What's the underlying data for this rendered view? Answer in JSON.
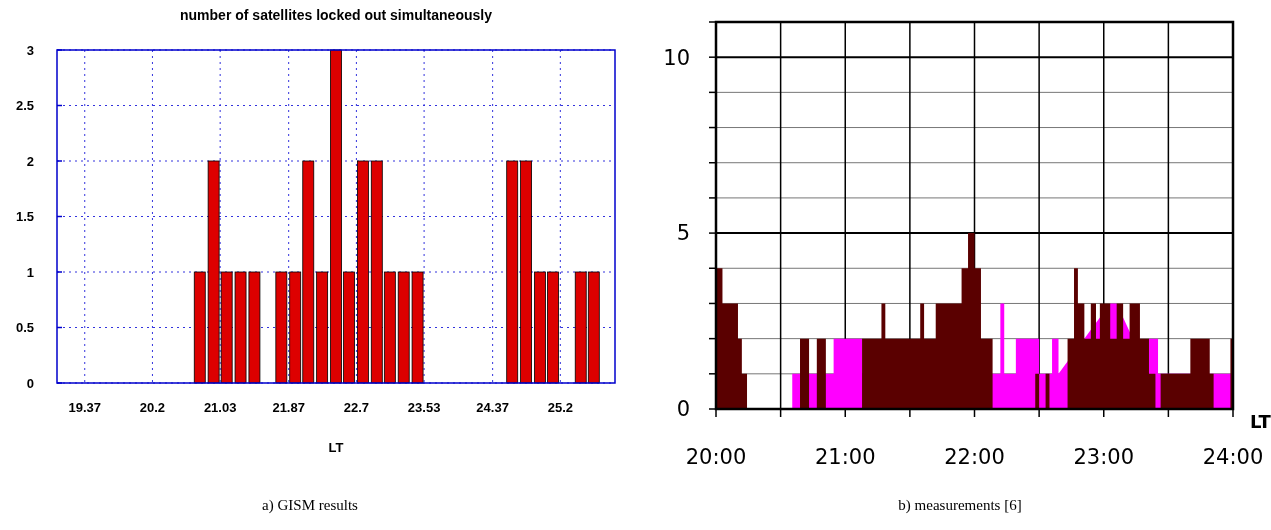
{
  "chart_data": [
    {
      "type": "bar",
      "title": "number of satellites locked out simultaneously",
      "xlabel": "LT",
      "annotations": [
        "a) GISM results"
      ],
      "x": [
        20.78,
        20.95,
        21.11,
        21.28,
        21.45,
        21.78,
        21.95,
        22.11,
        22.28,
        22.45,
        22.61,
        22.78,
        22.95,
        23.11,
        23.28,
        23.45,
        24.61,
        24.78,
        24.95,
        25.11,
        25.45,
        25.61
      ],
      "values": [
        1,
        2,
        1,
        1,
        1,
        1,
        1,
        2,
        1,
        3,
        1,
        2,
        2,
        1,
        1,
        1,
        2,
        2,
        1,
        1,
        1,
        1
      ],
      "color": "#dd0000",
      "xlim": [
        19.03,
        25.87
      ],
      "xticks": [
        19.37,
        20.2,
        21.03,
        21.87,
        22.7,
        23.53,
        24.37,
        25.2
      ],
      "ylim": [
        0,
        3
      ],
      "yticks": [
        0,
        0.5,
        1,
        1.5,
        2,
        2.5,
        3
      ],
      "grid": true
    },
    {
      "type": "area",
      "xlabel": "LT",
      "annotations": [
        "b) measurements [6]"
      ],
      "series": [
        {
          "color": "#ff00ff",
          "x": [
            20,
            20.59,
            20.59,
            20.91,
            20.91,
            21.13,
            21.13,
            22.2,
            22.2,
            22.23,
            22.23,
            22.32,
            22.32,
            22.5,
            22.5,
            22.6,
            22.6,
            22.65,
            22.65,
            23.05,
            23.1,
            23.35,
            23.35,
            23.42,
            23.42,
            24
          ],
          "values": [
            0,
            0,
            1,
            1,
            2,
            2,
            1,
            1,
            3,
            3,
            1,
            1,
            2,
            2,
            1,
            1,
            2,
            2,
            1,
            3,
            3,
            1,
            2,
            2,
            1,
            1
          ]
        },
        {
          "color": "#5a0000",
          "x": [
            20,
            20.05,
            20.05,
            20.17,
            20.17,
            20.2,
            20.2,
            20.24,
            20.24,
            20.65,
            20.65,
            20.72,
            20.72,
            20.78,
            20.78,
            20.85,
            20.85,
            21.13,
            21.13,
            21.28,
            21.28,
            21.31,
            21.31,
            21.58,
            21.58,
            21.61,
            21.61,
            21.7,
            21.7,
            21.9,
            21.9,
            21.95,
            21.95,
            22.0,
            22.0,
            22.05,
            22.05,
            22.14,
            22.14,
            22.47,
            22.47,
            22.5,
            22.5,
            22.55,
            22.55,
            22.58,
            22.58,
            22.72,
            22.72,
            22.77,
            22.77,
            22.8,
            22.8,
            22.85,
            22.85,
            22.9,
            22.9,
            22.94,
            22.94,
            22.97,
            22.97,
            23.05,
            23.05,
            23.1,
            23.1,
            23.15,
            23.15,
            23.2,
            23.2,
            23.28,
            23.28,
            23.35,
            23.35,
            23.4,
            23.4,
            23.44,
            23.44,
            23.67,
            23.67,
            23.82,
            23.82,
            23.85,
            23.85,
            23.98,
            23.98,
            24
          ],
          "values": [
            4,
            4,
            3,
            3,
            2,
            2,
            1,
            1,
            0,
            0,
            2,
            2,
            0,
            0,
            2,
            2,
            0,
            0,
            2,
            2,
            3,
            3,
            2,
            2,
            3,
            3,
            2,
            2,
            3,
            3,
            4,
            4,
            5,
            5,
            4,
            4,
            2,
            2,
            0,
            0,
            1,
            1,
            0,
            0,
            1,
            1,
            0,
            0,
            2,
            2,
            4,
            4,
            3,
            3,
            2,
            2,
            3,
            3,
            2,
            2,
            3,
            3,
            2,
            2,
            3,
            3,
            2,
            2,
            3,
            3,
            2,
            2,
            1,
            1,
            0,
            0,
            1,
            1,
            2,
            2,
            1,
            1,
            0,
            0,
            2,
            2
          ]
        }
      ],
      "xlim": [
        20,
        24
      ],
      "xticks": [
        {
          "value": 20,
          "label": "20:00"
        },
        {
          "value": 20.5,
          "label": null
        },
        {
          "value": 21,
          "label": "21:00"
        },
        {
          "value": 21.5,
          "label": null
        },
        {
          "value": 22,
          "label": "22:00"
        },
        {
          "value": 22.5,
          "label": null
        },
        {
          "value": 23,
          "label": "23:00"
        },
        {
          "value": 23.5,
          "label": null
        },
        {
          "value": 24,
          "label": "24:00"
        }
      ],
      "ylim": [
        0,
        11
      ],
      "yticks": [
        0,
        {
          "value": 1,
          "label": null
        },
        {
          "value": 2,
          "label": null
        },
        {
          "value": 3,
          "label": null
        },
        {
          "value": 4,
          "label": null
        },
        5,
        {
          "value": 6,
          "label": null
        },
        {
          "value": 7,
          "label": null
        },
        {
          "value": 8,
          "label": null
        },
        {
          "value": 9,
          "label": null
        },
        10,
        {
          "value": 11,
          "label": null
        }
      ],
      "grid": true
    }
  ]
}
